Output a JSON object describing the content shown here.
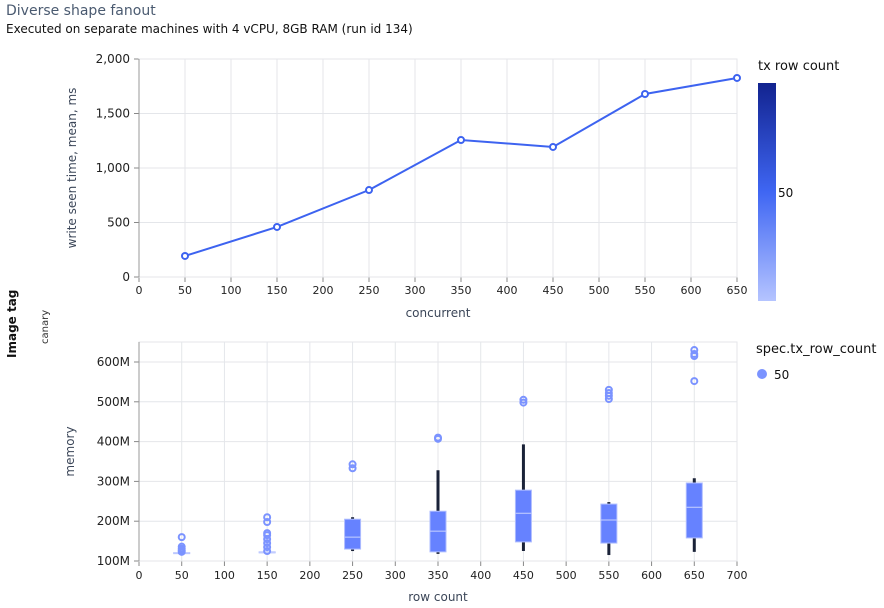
{
  "header": {
    "title": "Diverse shape fanout",
    "subtitle": "Executed on separate machines with 4 vCPU, 8GB RAM (run id 134)"
  },
  "facet": {
    "title": "Image tag",
    "label": "canary"
  },
  "colors": {
    "line": "#3d63f0",
    "box": "#6682ff",
    "whisker": "#1a2238",
    "grid": "#e4e6ea",
    "outlier": "#7b93ff"
  },
  "chart_data": [
    {
      "type": "line",
      "title": "",
      "xlabel": "concurrent",
      "ylabel": "write seen time, mean, ms",
      "x_ticks": [
        "0",
        "50",
        "100",
        "150",
        "200",
        "250",
        "300",
        "350",
        "400",
        "450",
        "500",
        "550",
        "600",
        "650"
      ],
      "y_ticks": [
        "0",
        "500",
        "1,000",
        "1,500",
        "2,000"
      ],
      "xlim": [
        0,
        650
      ],
      "ylim": [
        0,
        2000
      ],
      "grid": true,
      "x": [
        50,
        150,
        250,
        350,
        450,
        550,
        650
      ],
      "series": [
        {
          "name": "50",
          "values": [
            193,
            459,
            798,
            1257,
            1193,
            1679,
            1826
          ]
        }
      ],
      "legend": {
        "title": "tx row count",
        "type": "gradient",
        "labels": [
          "50"
        ],
        "position": "right"
      }
    },
    {
      "type": "box",
      "title": "",
      "xlabel": "row count",
      "ylabel": "memory",
      "x_ticks": [
        "0",
        "50",
        "100",
        "150",
        "200",
        "250",
        "300",
        "350",
        "400",
        "450",
        "500",
        "550",
        "600",
        "650",
        "700"
      ],
      "y_ticks": [
        "100M",
        "200M",
        "300M",
        "400M",
        "500M",
        "600M"
      ],
      "xlim": [
        0,
        700
      ],
      "ylim": [
        100,
        650
      ],
      "grid": true,
      "boxes": [
        {
          "x": 50,
          "low": 120,
          "q1": 120,
          "median": 120,
          "q3": 121,
          "high": 121,
          "outliers": [
            160,
            136,
            131,
            127,
            123
          ]
        },
        {
          "x": 150,
          "low": 121,
          "q1": 121,
          "median": 122,
          "q3": 123,
          "high": 123,
          "outliers": [
            210,
            198,
            170,
            165,
            155,
            145,
            135,
            125
          ]
        },
        {
          "x": 250,
          "low": 125,
          "q1": 130,
          "median": 160,
          "q3": 205,
          "high": 210,
          "outliers": [
            343,
            333
          ]
        },
        {
          "x": 350,
          "low": 118,
          "q1": 123,
          "median": 175,
          "q3": 225,
          "high": 328,
          "outliers": [
            410,
            407
          ]
        },
        {
          "x": 450,
          "low": 125,
          "q1": 148,
          "median": 220,
          "q3": 278,
          "high": 393,
          "outliers": [
            505,
            498
          ]
        },
        {
          "x": 550,
          "low": 115,
          "q1": 145,
          "median": 203,
          "q3": 243,
          "high": 248,
          "outliers": [
            530,
            522,
            515,
            507
          ]
        },
        {
          "x": 650,
          "low": 123,
          "q1": 158,
          "median": 235,
          "q3": 296,
          "high": 308,
          "outliers": [
            630,
            620,
            615,
            552
          ]
        }
      ],
      "legend": {
        "title": "spec.tx_row_count",
        "type": "symbol",
        "labels": [
          "50"
        ],
        "position": "right"
      }
    }
  ]
}
